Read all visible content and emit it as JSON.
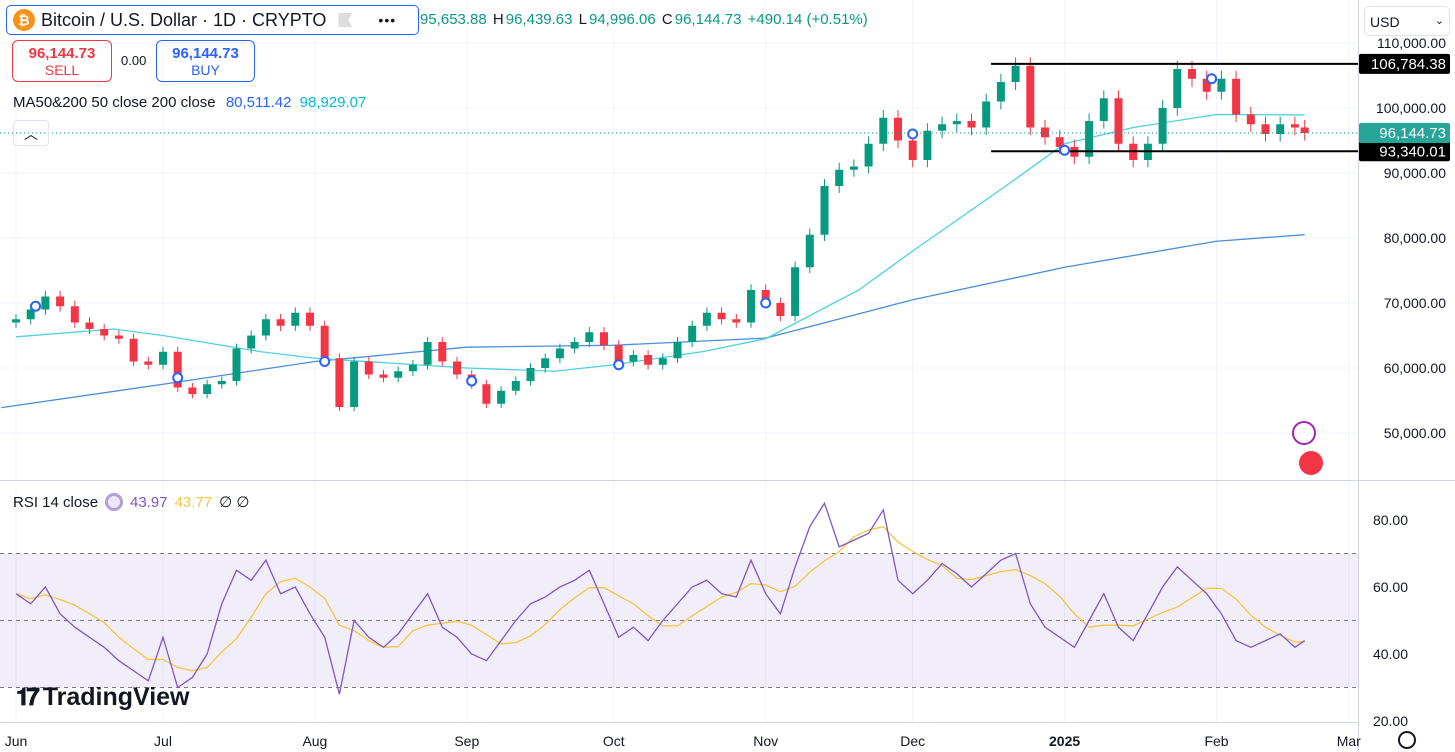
{
  "header": {
    "title": "Bitcoin / U.S. Dollar · 1D · CRYPTO",
    "open": "95,653.88",
    "high_label": "H",
    "high": "96,439.63",
    "low_label": "L",
    "low": "94,996.06",
    "close_label": "C",
    "close": "96,144.73",
    "change": "+490.14 (+0.51%)"
  },
  "trade": {
    "sell_price": "96,144.73",
    "sell_label": "SELL",
    "spread": "0.00",
    "buy_price": "96,144.73",
    "buy_label": "BUY"
  },
  "ma_legend": {
    "label": "MA50&200 50 close 200 close",
    "ma200": "80,511.42",
    "ma50": "98,929.07"
  },
  "rsi_legend": {
    "label": "RSI 14 close",
    "rsi": "43.97",
    "rsi_ma": "43.77",
    "extra": "∅ ∅"
  },
  "currency": "USD",
  "logo": "TradingView",
  "collapse_icon": "chevron-up",
  "colors": {
    "up": "#089981",
    "down": "#f23645",
    "ma50": "#4dd0e1",
    "ma200": "#2962ff",
    "rsi": "#7e57c2",
    "rsi_ma": "#f5c542"
  },
  "chart_data": {
    "type": "candlestick",
    "symbol": "BTCUSD",
    "interval": "1D",
    "price_axis": {
      "ticks": [
        110000,
        100000,
        90000,
        80000,
        70000,
        60000,
        50000
      ],
      "labels": [
        "110,000.00",
        "100,000.00",
        "90,000.00",
        "80,000.00",
        "70,000.00",
        "60,000.00",
        "50,000.00"
      ]
    },
    "rsi_axis": {
      "ticks": [
        80,
        60,
        40,
        20
      ],
      "labels": [
        "80.00",
        "60.00",
        "40.00",
        "20.00"
      ],
      "bands": [
        70,
        50,
        30
      ]
    },
    "time_axis": [
      {
        "day": 0,
        "label": "Jun"
      },
      {
        "day": 30,
        "label": "Jul"
      },
      {
        "day": 61,
        "label": "Aug"
      },
      {
        "day": 92,
        "label": "Sep"
      },
      {
        "day": 122,
        "label": "Oct"
      },
      {
        "day": 153,
        "label": "Nov"
      },
      {
        "day": 183,
        "label": "Dec"
      },
      {
        "day": 214,
        "label": "2025"
      },
      {
        "day": 245,
        "label": "Feb"
      },
      {
        "day": 272,
        "label": "Mar"
      }
    ],
    "sample_step_days": 3,
    "closes_k": [
      67.5,
      69,
      71,
      69.5,
      67,
      66,
      65,
      64.5,
      61,
      60.5,
      62.5,
      57,
      56,
      57.5,
      58,
      63,
      65,
      67.5,
      66.5,
      68.5,
      66.5,
      61.5,
      54,
      61,
      59,
      58.5,
      59.5,
      60.5,
      64,
      61,
      59,
      57.5,
      54.5,
      56.5,
      58,
      60,
      61.5,
      63,
      64,
      65.5,
      63.5,
      61,
      62,
      60.5,
      61.5,
      64,
      66.5,
      68.5,
      67.5,
      67,
      72,
      70,
      68,
      75.5,
      80.5,
      88,
      90.5,
      91,
      94.5,
      98.5,
      95,
      92,
      96.5,
      97.5,
      98,
      97,
      101,
      104,
      106.5,
      97,
      95.5,
      94,
      92.5,
      98,
      101.5,
      94.5,
      92,
      94.5,
      100,
      106,
      104.5,
      102.5,
      104.5,
      99,
      97.5,
      96,
      97.5,
      97,
      96.14
    ],
    "rsi": [
      58,
      55,
      60,
      52,
      48,
      45,
      42,
      38,
      35,
      32,
      45,
      30,
      33,
      40,
      55,
      65,
      62,
      68,
      58,
      60,
      52,
      45,
      28,
      50,
      45,
      42,
      46,
      52,
      58,
      48,
      45,
      40,
      38,
      44,
      50,
      55,
      57,
      60,
      62,
      65,
      55,
      45,
      48,
      44,
      50,
      55,
      60,
      62,
      58,
      57,
      68,
      58,
      52,
      66,
      78,
      85,
      72,
      74,
      76,
      83,
      62,
      58,
      62,
      67,
      64,
      60,
      64,
      68,
      70,
      55,
      48,
      45,
      42,
      50,
      58,
      48,
      44,
      52,
      60,
      66,
      62,
      58,
      52,
      44,
      42,
      44,
      46,
      42,
      43.97
    ],
    "ma50_k": [
      [
        0,
        64.8
      ],
      [
        20,
        66
      ],
      [
        30,
        65
      ],
      [
        50,
        62.5
      ],
      [
        61,
        61.5
      ],
      [
        92,
        60
      ],
      [
        110,
        59.5
      ],
      [
        122,
        60.5
      ],
      [
        140,
        62.5
      ],
      [
        153,
        64.5
      ],
      [
        172,
        72
      ],
      [
        183,
        78
      ],
      [
        202,
        88
      ],
      [
        214,
        94.5
      ],
      [
        228,
        97
      ],
      [
        245,
        99
      ],
      [
        263,
        98.93
      ]
    ],
    "ma200_k": [
      [
        -3,
        53.9
      ],
      [
        30,
        57.5
      ],
      [
        61,
        61
      ],
      [
        92,
        63.2
      ],
      [
        122,
        63.5
      ],
      [
        153,
        64.6
      ],
      [
        183,
        70.5
      ],
      [
        214,
        75.5
      ],
      [
        245,
        79.5
      ],
      [
        263,
        80.51
      ]
    ],
    "markers": [
      {
        "day": 4,
        "price_k": 69.5
      },
      {
        "day": 33,
        "price_k": 58.5
      },
      {
        "day": 63,
        "price_k": 61
      },
      {
        "day": 93,
        "price_k": 58
      },
      {
        "day": 123,
        "price_k": 60.5
      },
      {
        "day": 153,
        "price_k": 70
      },
      {
        "day": 183,
        "price_k": 96
      },
      {
        "day": 214,
        "price_k": 93.5
      },
      {
        "day": 244,
        "price_k": 104.5
      }
    ],
    "levels": [
      {
        "price": 106784.38,
        "label": "106,784.38",
        "start_day": 199
      },
      {
        "price": 93340.01,
        "label": "93,340.01",
        "start_day": 199
      }
    ],
    "last_price": {
      "price": 96144.73,
      "label": "96,144.73"
    }
  }
}
